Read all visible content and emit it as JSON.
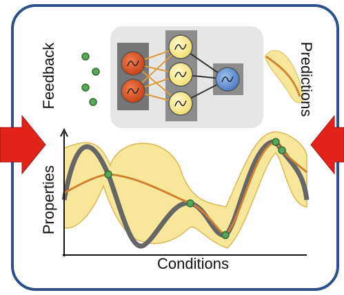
{
  "labels": {
    "feedback": "Feedback",
    "predictions": "Predictions",
    "properties": "Properties",
    "conditions": "Conditions"
  }
}
